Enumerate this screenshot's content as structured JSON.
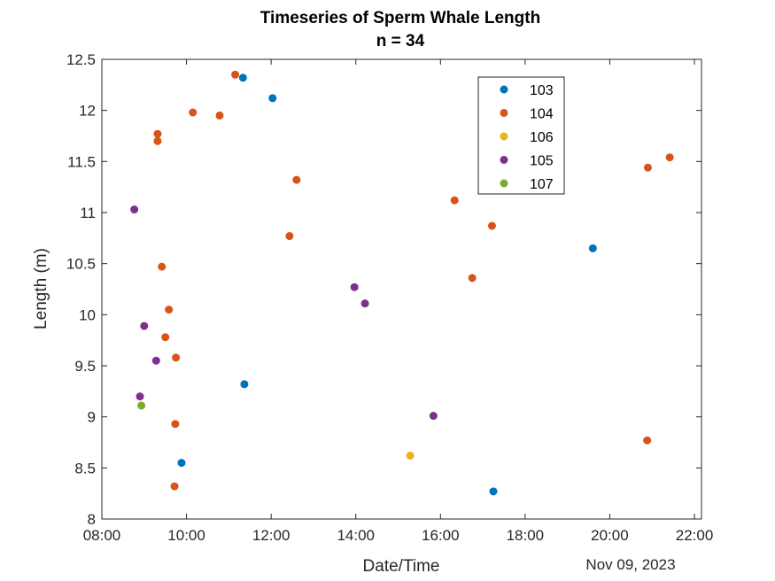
{
  "chart_data": {
    "type": "scatter",
    "title": "Timeseries of Sperm Whale Length",
    "subtitle": "n = 34",
    "xlabel": "Date/Time",
    "ylabel": "Length (m)",
    "date_label": "Nov 09, 2023",
    "xlim": [
      "08:00",
      "22:10"
    ],
    "ylim": [
      8,
      12.5
    ],
    "xticks": [
      "08:00",
      "10:00",
      "12:00",
      "14:00",
      "16:00",
      "18:00",
      "20:00",
      "22:00"
    ],
    "yticks": [
      "8",
      "8.5",
      "9",
      "9.5",
      "10",
      "10.5",
      "11",
      "11.5",
      "12",
      "12.5"
    ],
    "grid": false,
    "legend_position": "top-right",
    "series": [
      {
        "name": "103",
        "color": "#0072BD",
        "points": [
          {
            "x": "11:20",
            "y": 12.32
          },
          {
            "x": "12:02",
            "y": 12.12
          },
          {
            "x": "11:22",
            "y": 9.32
          },
          {
            "x": "09:53",
            "y": 8.55
          },
          {
            "x": "17:15",
            "y": 8.27
          },
          {
            "x": "19:36",
            "y": 10.65
          }
        ]
      },
      {
        "name": "104",
        "color": "#D95319",
        "points": [
          {
            "x": "11:09",
            "y": 12.35
          },
          {
            "x": "10:09",
            "y": 11.98
          },
          {
            "x": "10:47",
            "y": 11.95
          },
          {
            "x": "09:19",
            "y": 11.77
          },
          {
            "x": "09:19",
            "y": 11.7
          },
          {
            "x": "12:36",
            "y": 11.32
          },
          {
            "x": "12:26",
            "y": 10.77
          },
          {
            "x": "09:25",
            "y": 10.47
          },
          {
            "x": "09:35",
            "y": 10.05
          },
          {
            "x": "09:30",
            "y": 9.78
          },
          {
            "x": "09:45",
            "y": 9.58
          },
          {
            "x": "09:44",
            "y": 8.93
          },
          {
            "x": "09:43",
            "y": 8.32
          },
          {
            "x": "16:20",
            "y": 11.12
          },
          {
            "x": "16:45",
            "y": 10.36
          },
          {
            "x": "17:13",
            "y": 10.87
          },
          {
            "x": "20:54",
            "y": 11.44
          },
          {
            "x": "21:25",
            "y": 11.54
          },
          {
            "x": "20:53",
            "y": 8.77
          }
        ]
      },
      {
        "name": "106",
        "color": "#EDB120",
        "points": [
          {
            "x": "15:17",
            "y": 8.62
          }
        ]
      },
      {
        "name": "105",
        "color": "#7E2F8E",
        "points": [
          {
            "x": "08:46",
            "y": 11.03
          },
          {
            "x": "09:00",
            "y": 9.89
          },
          {
            "x": "09:17",
            "y": 9.55
          },
          {
            "x": "08:54",
            "y": 9.2
          },
          {
            "x": "13:58",
            "y": 10.27
          },
          {
            "x": "14:13",
            "y": 10.11
          },
          {
            "x": "15:50",
            "y": 9.01
          }
        ]
      },
      {
        "name": "107",
        "color": "#77AC30",
        "points": [
          {
            "x": "08:56",
            "y": 9.11
          }
        ]
      }
    ]
  }
}
